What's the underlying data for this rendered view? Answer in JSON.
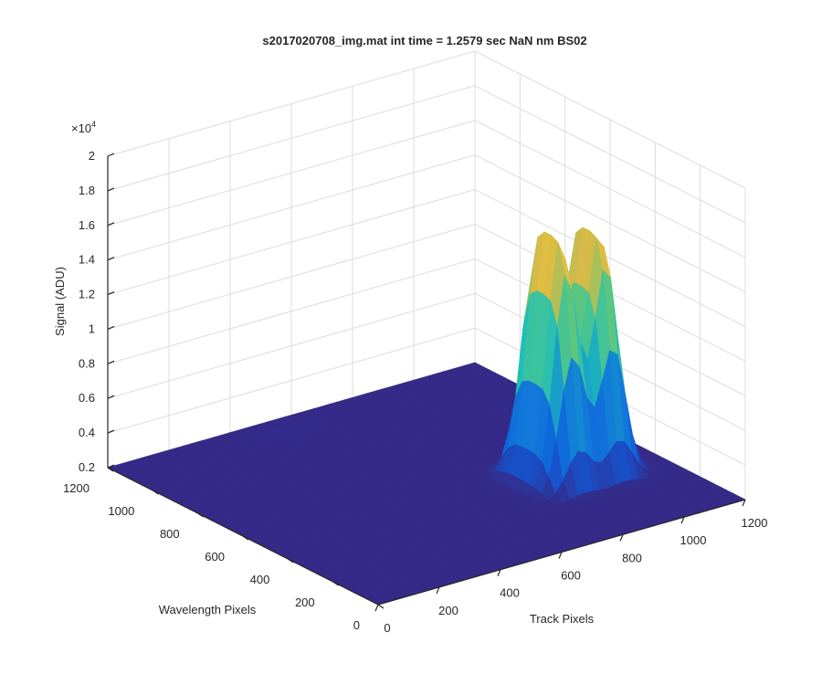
{
  "chart_data": {
    "type": "surface",
    "title": "s2017020708_img.mat int time = 1.2579 sec  NaN nm BS02",
    "xlabel": "Track Pixels",
    "ylabel": "Wavelength Pixels",
    "zlabel": "Signal (ADU)",
    "z_multiplier_label": "×10",
    "z_multiplier_exponent": "4",
    "x_ticks": [
      "0",
      "200",
      "400",
      "600",
      "800",
      "1000",
      "1200"
    ],
    "y_ticks": [
      "0",
      "200",
      "400",
      "600",
      "800",
      "1000",
      "1200"
    ],
    "z_ticks": [
      "0.2",
      "0.4",
      "0.6",
      "0.8",
      "1",
      "1.2",
      "1.4",
      "1.6",
      "1.8",
      "2"
    ],
    "xlim": [
      0,
      1200
    ],
    "ylim": [
      0,
      1200
    ],
    "zlim": [
      0.2,
      2.0
    ],
    "z_scale": 10000,
    "grid": true,
    "colormap": "parula",
    "colors": {
      "base": "#352a87",
      "low": "#0f5cdd",
      "mid": "#1fbfb8",
      "high": "#f9d630"
    },
    "peaks": [
      {
        "track_center": 880,
        "wavelength_center": 430,
        "height": 1.62
      },
      {
        "track_center": 1010,
        "wavelength_center": 430,
        "height": 1.6
      }
    ],
    "baseline": 0.2
  }
}
